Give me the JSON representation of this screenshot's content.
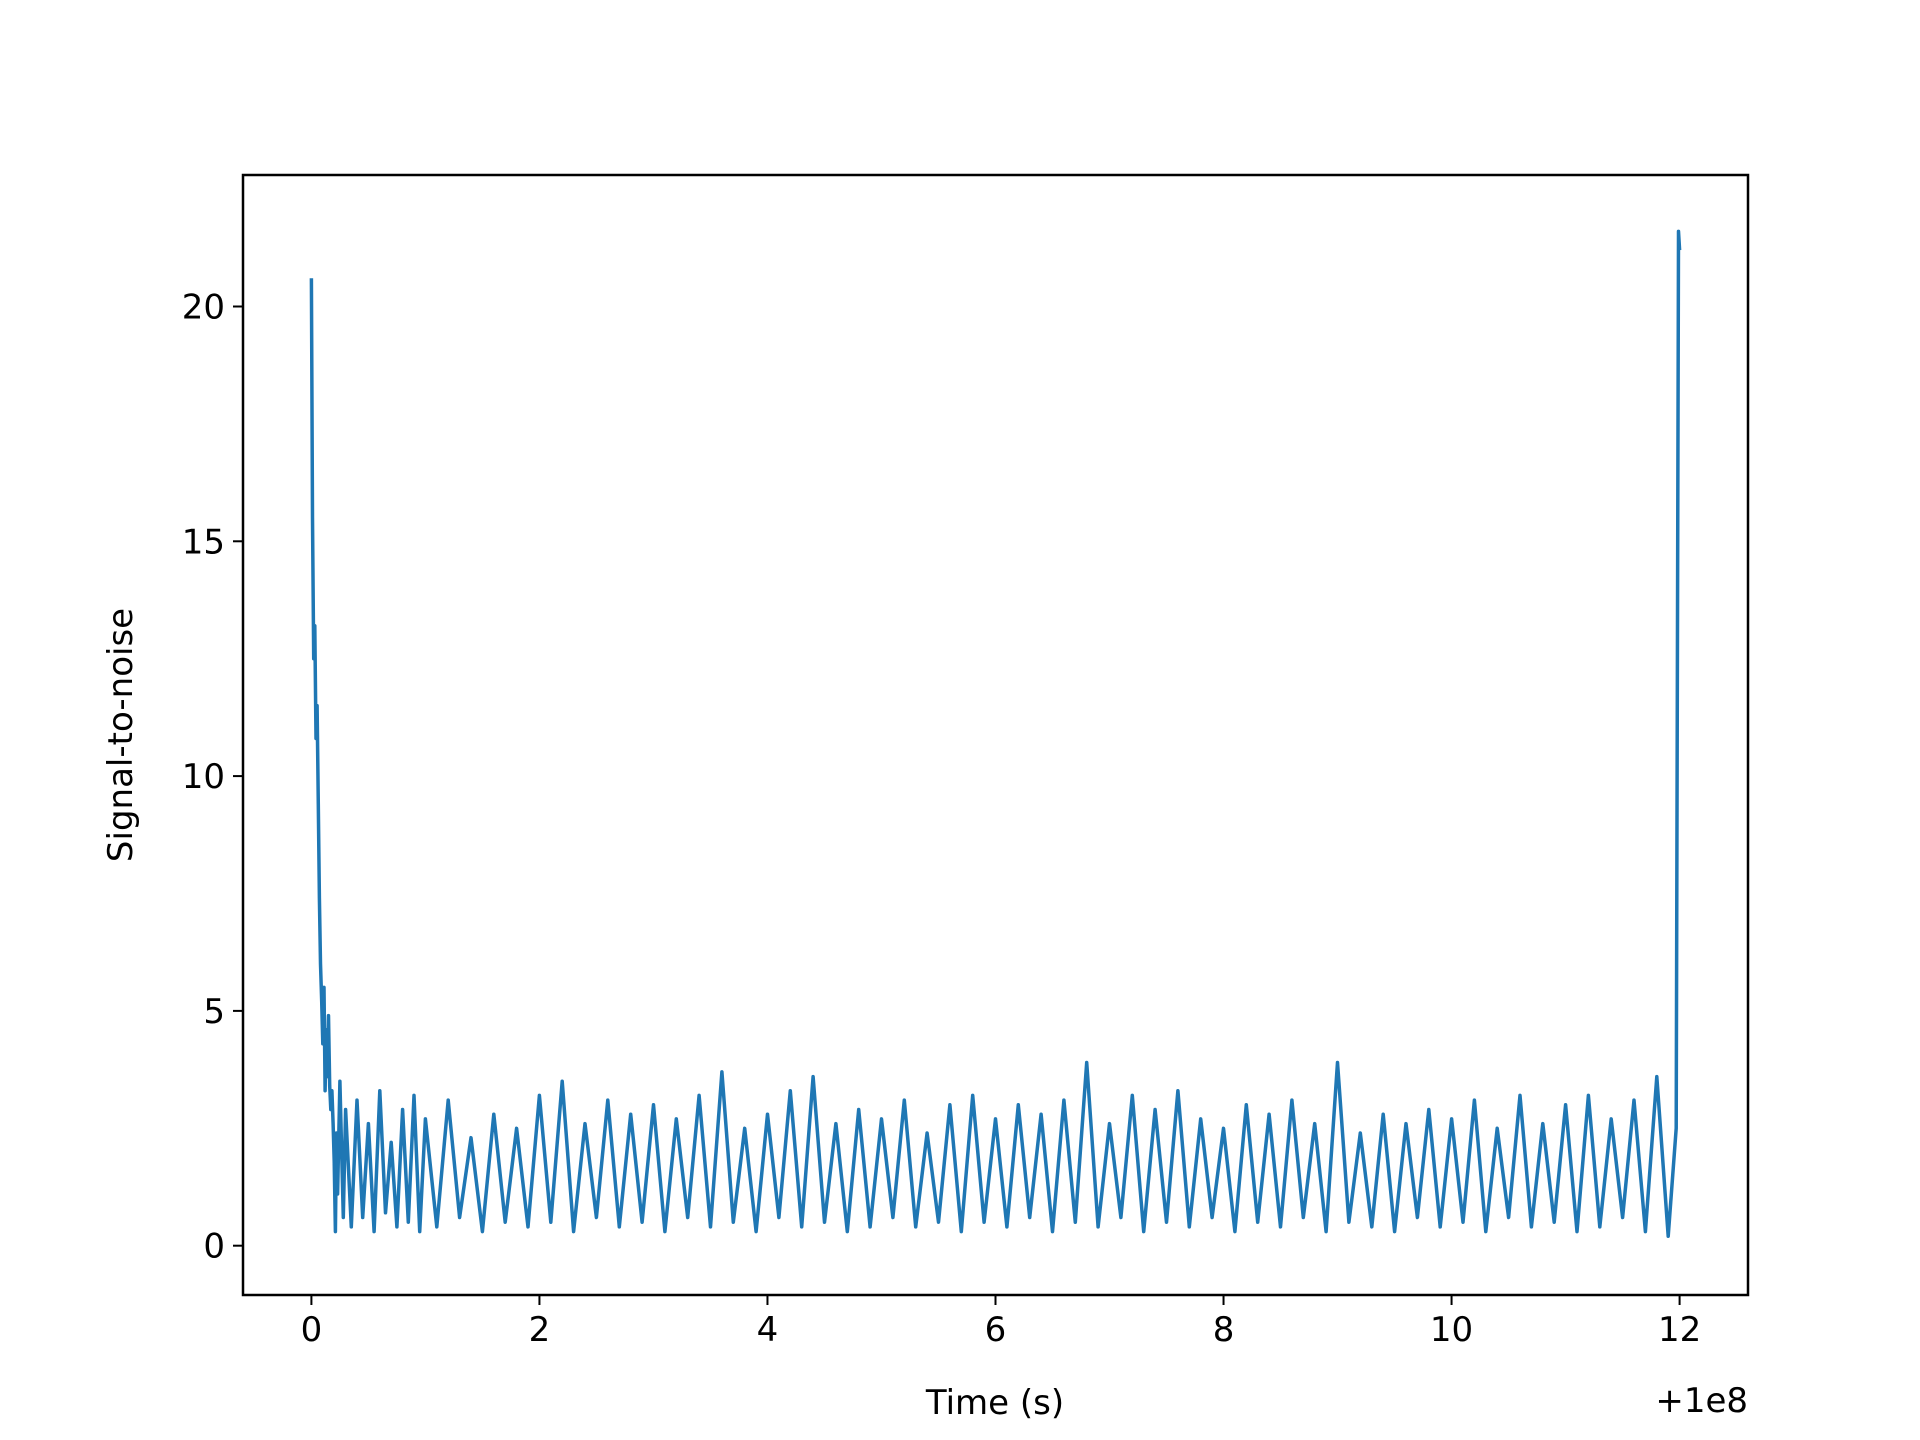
{
  "chart_data": {
    "type": "line",
    "title": "",
    "xlabel": "Time (s)",
    "ylabel": "Signal-to-noise",
    "x_offset_label": "+1e8",
    "xlim": [
      -0.6,
      12.6
    ],
    "ylim": [
      -1.05,
      22.8
    ],
    "grid": false,
    "legend": "none",
    "line_color": "#1f77b4",
    "x_ticks": [
      {
        "value": 0,
        "label": "0"
      },
      {
        "value": 2,
        "label": "2"
      },
      {
        "value": 4,
        "label": "4"
      },
      {
        "value": 6,
        "label": "6"
      },
      {
        "value": 8,
        "label": "8"
      },
      {
        "value": 10,
        "label": "10"
      },
      {
        "value": 12,
        "label": "12"
      }
    ],
    "y_ticks": [
      {
        "value": 0,
        "label": "0"
      },
      {
        "value": 5,
        "label": "5"
      },
      {
        "value": 10,
        "label": "10"
      },
      {
        "value": 15,
        "label": "15"
      },
      {
        "value": 20,
        "label": "20"
      }
    ],
    "series": [
      {
        "values_note": "approximate trace read from plot",
        "x": [
          0.0,
          0.01,
          0.02,
          0.03,
          0.04,
          0.05,
          0.06,
          0.07,
          0.08,
          0.09,
          0.1,
          0.11,
          0.12,
          0.13,
          0.14,
          0.15,
          0.16,
          0.17,
          0.18,
          0.19,
          0.2,
          0.21,
          0.22,
          0.23,
          0.25,
          0.28,
          0.3,
          0.35,
          0.4,
          0.45,
          0.5,
          0.55,
          0.6,
          0.65,
          0.7,
          0.75,
          0.8,
          0.85,
          0.9,
          0.95,
          1.0,
          1.1,
          1.2,
          1.3,
          1.4,
          1.5,
          1.6,
          1.7,
          1.8,
          1.9,
          2.0,
          2.1,
          2.2,
          2.3,
          2.4,
          2.5,
          2.6,
          2.7,
          2.8,
          2.9,
          3.0,
          3.1,
          3.2,
          3.3,
          3.4,
          3.5,
          3.6,
          3.7,
          3.8,
          3.9,
          4.0,
          4.1,
          4.2,
          4.3,
          4.4,
          4.5,
          4.6,
          4.7,
          4.8,
          4.9,
          5.0,
          5.1,
          5.2,
          5.3,
          5.4,
          5.5,
          5.6,
          5.7,
          5.8,
          5.9,
          6.0,
          6.1,
          6.2,
          6.3,
          6.4,
          6.5,
          6.6,
          6.7,
          6.8,
          6.9,
          7.0,
          7.1,
          7.2,
          7.3,
          7.4,
          7.5,
          7.6,
          7.7,
          7.8,
          7.9,
          8.0,
          8.1,
          8.2,
          8.3,
          8.4,
          8.5,
          8.6,
          8.7,
          8.8,
          8.9,
          9.0,
          9.1,
          9.2,
          9.3,
          9.4,
          9.5,
          9.6,
          9.7,
          9.8,
          9.9,
          10.0,
          10.1,
          10.2,
          10.3,
          10.4,
          10.5,
          10.6,
          10.7,
          10.8,
          10.9,
          11.0,
          11.1,
          11.2,
          11.3,
          11.4,
          11.5,
          11.6,
          11.7,
          11.8,
          11.9,
          11.97,
          11.99,
          12.0
        ],
        "values": [
          20.6,
          15.5,
          12.5,
          13.2,
          10.8,
          11.5,
          9.4,
          7.4,
          6.0,
          5.2,
          4.3,
          5.5,
          3.3,
          4.6,
          3.6,
          4.9,
          3.4,
          2.9,
          3.3,
          2.6,
          1.8,
          0.3,
          2.4,
          1.1,
          3.5,
          0.6,
          2.9,
          0.4,
          3.1,
          0.6,
          2.6,
          0.3,
          3.3,
          0.7,
          2.2,
          0.4,
          2.9,
          0.5,
          3.2,
          0.3,
          2.7,
          0.4,
          3.1,
          0.6,
          2.3,
          0.3,
          2.8,
          0.5,
          2.5,
          0.4,
          3.2,
          0.5,
          3.5,
          0.3,
          2.6,
          0.6,
          3.1,
          0.4,
          2.8,
          0.5,
          3.0,
          0.3,
          2.7,
          0.6,
          3.2,
          0.4,
          3.7,
          0.5,
          2.5,
          0.3,
          2.8,
          0.6,
          3.3,
          0.4,
          3.6,
          0.5,
          2.6,
          0.3,
          2.9,
          0.4,
          2.7,
          0.6,
          3.1,
          0.4,
          2.4,
          0.5,
          3.0,
          0.3,
          3.2,
          0.5,
          2.7,
          0.4,
          3.0,
          0.6,
          2.8,
          0.3,
          3.1,
          0.5,
          3.9,
          0.4,
          2.6,
          0.6,
          3.2,
          0.3,
          2.9,
          0.5,
          3.3,
          0.4,
          2.7,
          0.6,
          2.5,
          0.3,
          3.0,
          0.5,
          2.8,
          0.4,
          3.1,
          0.6,
          2.6,
          0.3,
          3.9,
          0.5,
          2.4,
          0.4,
          2.8,
          0.3,
          2.6,
          0.6,
          2.9,
          0.4,
          2.7,
          0.5,
          3.1,
          0.3,
          2.5,
          0.6,
          3.2,
          0.4,
          2.6,
          0.5,
          3.0,
          0.3,
          3.2,
          0.4,
          2.7,
          0.6,
          3.1,
          0.3,
          3.6,
          0.2,
          2.5,
          21.6,
          21.2
        ]
      }
    ]
  }
}
